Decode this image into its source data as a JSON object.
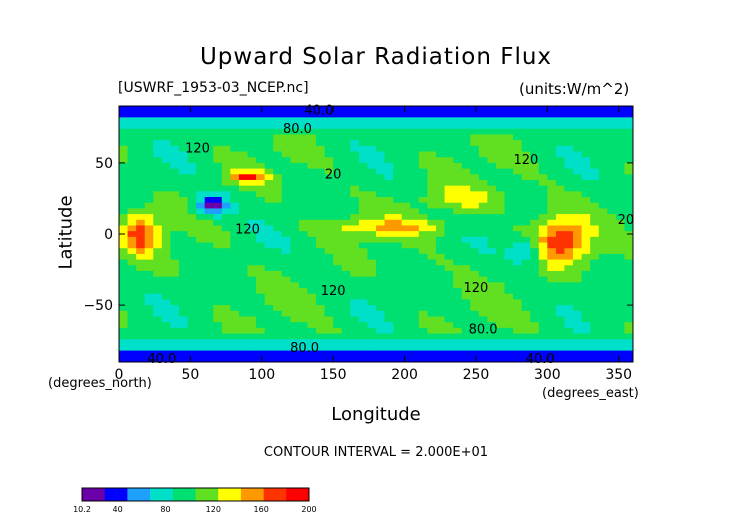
{
  "chart_data": {
    "type": "heatmap",
    "title": "Upward Solar Radiation Flux",
    "subtitle_left": "[USWRF_1953-03_NCEP.nc]",
    "subtitle_right": "(units:W/m^2)",
    "xlabel": "Longitude",
    "xunits": "(degrees_east)",
    "ylabel": "Latitude",
    "yunits": "(degrees_north)",
    "xlim": [
      0,
      360
    ],
    "ylim": [
      -90,
      90
    ],
    "xticks": [
      "0",
      "50",
      "100",
      "150",
      "200",
      "250",
      "300",
      "350"
    ],
    "yticks": [
      "50",
      "0",
      "−50"
    ],
    "contour_interval_text": "CONTOUR INTERVAL = 2.000E+01",
    "contour_labels": [
      {
        "text": "40.0",
        "lon": 140,
        "lat": 87
      },
      {
        "text": "80.0",
        "lon": 125,
        "lat": 74
      },
      {
        "text": "120",
        "lon": 55,
        "lat": 60
      },
      {
        "text": "120",
        "lon": 285,
        "lat": 52
      },
      {
        "text": "20",
        "lon": 150,
        "lat": 42
      },
      {
        "text": "120",
        "lon": 90,
        "lat": 3
      },
      {
        "text": "120",
        "lon": 150,
        "lat": -40
      },
      {
        "text": "120",
        "lon": 250,
        "lat": -38
      },
      {
        "text": "80.0",
        "lon": 255,
        "lat": -67
      },
      {
        "text": "80.0",
        "lon": 130,
        "lat": -80
      },
      {
        "text": "40.0",
        "lon": 30,
        "lat": -88
      },
      {
        "text": "40.0",
        "lon": 295,
        "lat": -88
      },
      {
        "text": "20",
        "lon": 355,
        "lat": 10
      }
    ],
    "colorbar": {
      "ticks": [
        "10.2",
        "40",
        "80",
        "120",
        "160",
        "200"
      ],
      "min": 10.2,
      "max": 200
    },
    "colorscale": [
      "#6a00a8",
      "#0000ff",
      "#1ea0ff",
      "#00e0c8",
      "#00e070",
      "#60e020",
      "#ffff00",
      "#ff9900",
      "#ff3300",
      "#ff0000"
    ]
  }
}
